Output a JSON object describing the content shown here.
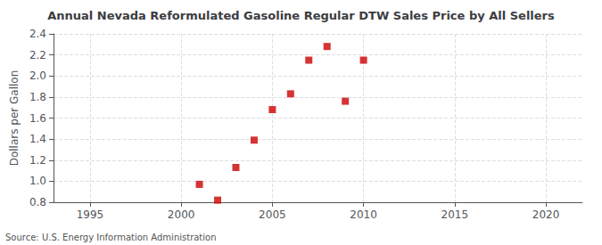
{
  "chart_data": {
    "type": "scatter",
    "title": "Annual Nevada Reformulated Gasoline Regular DTW Sales Price by All Sellers",
    "ylabel": "Dollars per Gallon",
    "source": "Source: U.S. Energy Information Administration",
    "x": [
      2001,
      2002,
      2003,
      2004,
      2005,
      2006,
      2007,
      2008,
      2009,
      2010
    ],
    "values": [
      0.97,
      0.82,
      1.13,
      1.39,
      1.68,
      1.83,
      2.15,
      2.28,
      1.76,
      2.15
    ],
    "color": "#cc0000",
    "marker": "square",
    "xlim": [
      1993,
      2022
    ],
    "ylim": [
      0.8,
      2.4
    ],
    "xticks": [
      1995,
      2000,
      2005,
      2010,
      2015,
      2020
    ],
    "yticks": [
      0.8,
      {
        "value": 1.0,
        "label": "1.0"
      },
      1.2,
      1.4,
      1.6,
      1.8,
      {
        "value": 2.0,
        "label": "2.0"
      },
      2.2,
      2.4
    ],
    "grid": true
  }
}
